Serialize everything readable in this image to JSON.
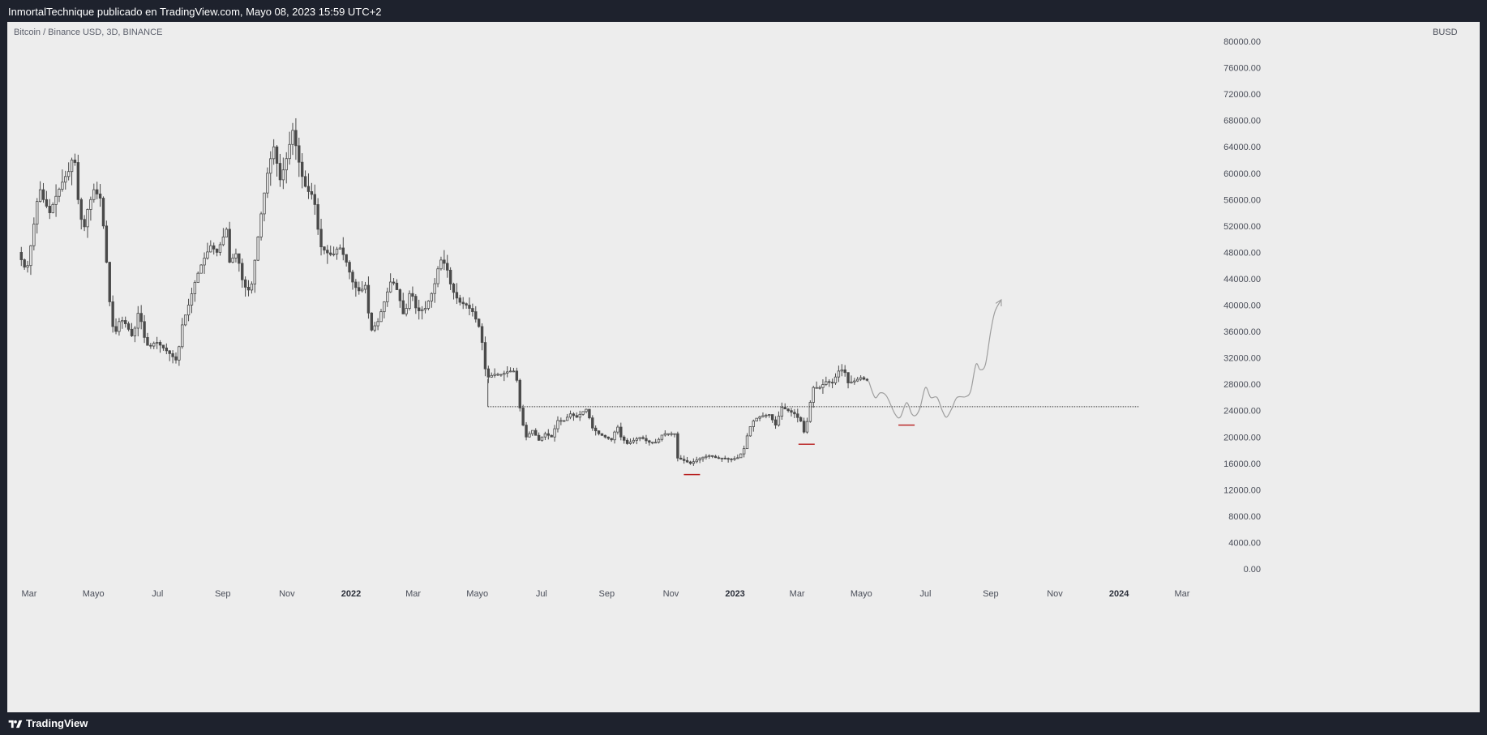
{
  "header": {
    "publisher_line": "InmortalTechnique publicado en TradingView.com, Mayo 08, 2023 15:59 UTC+2"
  },
  "symbol_label": "Bitcoin / Binance USD, 3D, BINANCE",
  "currency_label": "BUSD",
  "footer": {
    "brand": "TradingView"
  },
  "colors": {
    "background": "#ededed",
    "frame": "#1e222d",
    "candle": "#4a4a4a",
    "projection": "#9e9e9e",
    "support_line": "#3a3a3a",
    "low_marker": "#b71c1c"
  },
  "chart_data": {
    "type": "candlestick",
    "symbol": "Bitcoin / Binance USD",
    "interval": "3D",
    "exchange": "BINANCE",
    "ylim": [
      0,
      80000
    ],
    "y_ticks": [
      "80000.00",
      "76000.00",
      "72000.00",
      "68000.00",
      "64000.00",
      "60000.00",
      "56000.00",
      "52000.00",
      "48000.00",
      "44000.00",
      "40000.00",
      "36000.00",
      "32000.00",
      "28000.00",
      "24000.00",
      "20000.00",
      "16000.00",
      "12000.00",
      "8000.00",
      "4000.00",
      "0.00"
    ],
    "x_ticks": [
      {
        "label": "Mar",
        "date": "2021-03-01"
      },
      {
        "label": "Mayo",
        "date": "2021-05-01"
      },
      {
        "label": "Jul",
        "date": "2021-07-01"
      },
      {
        "label": "Sep",
        "date": "2021-09-01"
      },
      {
        "label": "Nov",
        "date": "2021-11-01"
      },
      {
        "label": "2022",
        "date": "2022-01-01",
        "bold": true
      },
      {
        "label": "Mar",
        "date": "2022-03-01"
      },
      {
        "label": "Mayo",
        "date": "2022-05-01"
      },
      {
        "label": "Jul",
        "date": "2022-07-01"
      },
      {
        "label": "Sep",
        "date": "2022-09-01"
      },
      {
        "label": "Nov",
        "date": "2022-11-01"
      },
      {
        "label": "2023",
        "date": "2023-01-01",
        "bold": true
      },
      {
        "label": "Mar",
        "date": "2023-03-01"
      },
      {
        "label": "Mayo",
        "date": "2023-05-01"
      },
      {
        "label": "Jul",
        "date": "2023-07-01"
      },
      {
        "label": "Sep",
        "date": "2023-09-01"
      },
      {
        "label": "Nov",
        "date": "2023-11-01"
      },
      {
        "label": "2024",
        "date": "2024-01-01",
        "bold": true
      },
      {
        "label": "Mar",
        "date": "2024-03-01"
      }
    ],
    "price_path": [
      [
        "2021-02-20",
        48000
      ],
      [
        "2021-02-28",
        45000
      ],
      [
        "2021-03-05",
        50000
      ],
      [
        "2021-03-12",
        58000
      ],
      [
        "2021-03-16",
        56000
      ],
      [
        "2021-03-22",
        54000
      ],
      [
        "2021-03-28",
        56500
      ],
      [
        "2021-04-04",
        59000
      ],
      [
        "2021-04-10",
        60500
      ],
      [
        "2021-04-14",
        63500
      ],
      [
        "2021-04-18",
        56000
      ],
      [
        "2021-04-23",
        51000
      ],
      [
        "2021-04-27",
        54500
      ],
      [
        "2021-05-03",
        57500
      ],
      [
        "2021-05-10",
        56000
      ],
      [
        "2021-05-13",
        50000
      ],
      [
        "2021-05-17",
        43000
      ],
      [
        "2021-05-19",
        38000
      ],
      [
        "2021-05-23",
        35500
      ],
      [
        "2021-05-28",
        38000
      ],
      [
        "2021-06-03",
        37000
      ],
      [
        "2021-06-09",
        35000
      ],
      [
        "2021-06-15",
        39500
      ],
      [
        "2021-06-19",
        35500
      ],
      [
        "2021-06-24",
        33500
      ],
      [
        "2021-07-01",
        34500
      ],
      [
        "2021-07-08",
        33500
      ],
      [
        "2021-07-15",
        32500
      ],
      [
        "2021-07-21",
        31500
      ],
      [
        "2021-07-26",
        37000
      ],
      [
        "2021-08-01",
        40000
      ],
      [
        "2021-08-08",
        44000
      ],
      [
        "2021-08-14",
        46500
      ],
      [
        "2021-08-22",
        49000
      ],
      [
        "2021-08-28",
        48000
      ],
      [
        "2021-09-06",
        51500
      ],
      [
        "2021-09-09",
        46500
      ],
      [
        "2021-09-16",
        48000
      ],
      [
        "2021-09-22",
        43000
      ],
      [
        "2021-09-29",
        42000
      ],
      [
        "2021-10-04",
        48000
      ],
      [
        "2021-10-10",
        55000
      ],
      [
        "2021-10-16",
        61000
      ],
      [
        "2021-10-21",
        64000
      ],
      [
        "2021-10-27",
        59000
      ],
      [
        "2021-11-01",
        61500
      ],
      [
        "2021-11-08",
        66500
      ],
      [
        "2021-11-10",
        65000
      ],
      [
        "2021-11-16",
        60000
      ],
      [
        "2021-11-21",
        57500
      ],
      [
        "2021-11-28",
        56500
      ],
      [
        "2021-12-04",
        49000
      ],
      [
        "2021-12-10",
        48000
      ],
      [
        "2021-12-16",
        47500
      ],
      [
        "2021-12-22",
        49000
      ],
      [
        "2021-12-28",
        47000
      ],
      [
        "2022-01-05",
        43000
      ],
      [
        "2022-01-11",
        42000
      ],
      [
        "2022-01-16",
        43000
      ],
      [
        "2022-01-21",
        36000
      ],
      [
        "2022-01-28",
        37500
      ],
      [
        "2022-02-06",
        42000
      ],
      [
        "2022-02-10",
        44000
      ],
      [
        "2022-02-16",
        42000
      ],
      [
        "2022-02-22",
        38000
      ],
      [
        "2022-02-28",
        42500
      ],
      [
        "2022-03-06",
        39000
      ],
      [
        "2022-03-14",
        39500
      ],
      [
        "2022-03-22",
        42500
      ],
      [
        "2022-03-28",
        47000
      ],
      [
        "2022-04-03",
        46000
      ],
      [
        "2022-04-08",
        42500
      ],
      [
        "2022-04-15",
        40500
      ],
      [
        "2022-04-22",
        40000
      ],
      [
        "2022-04-28",
        39000
      ],
      [
        "2022-05-06",
        36000
      ],
      [
        "2022-05-09",
        31000
      ],
      [
        "2022-05-12",
        29000
      ],
      [
        "2022-05-18",
        29500
      ],
      [
        "2022-05-25",
        29500
      ],
      [
        "2022-06-02",
        30000
      ],
      [
        "2022-06-08",
        30000
      ],
      [
        "2022-06-13",
        23000
      ],
      [
        "2022-06-18",
        20000
      ],
      [
        "2022-06-24",
        21000
      ],
      [
        "2022-06-30",
        19500
      ],
      [
        "2022-07-06",
        20500
      ],
      [
        "2022-07-12",
        20000
      ],
      [
        "2022-07-18",
        22500
      ],
      [
        "2022-07-24",
        22500
      ],
      [
        "2022-07-30",
        23500
      ],
      [
        "2022-08-05",
        23000
      ],
      [
        "2022-08-12",
        24000
      ],
      [
        "2022-08-15",
        24300
      ],
      [
        "2022-08-19",
        21500
      ],
      [
        "2022-08-26",
        20500
      ],
      [
        "2022-09-01",
        20000
      ],
      [
        "2022-09-08",
        19500
      ],
      [
        "2022-09-12",
        22000
      ],
      [
        "2022-09-16",
        20000
      ],
      [
        "2022-09-22",
        19000
      ],
      [
        "2022-09-28",
        19500
      ],
      [
        "2022-10-05",
        20000
      ],
      [
        "2022-10-12",
        19200
      ],
      [
        "2022-10-20",
        19200
      ],
      [
        "2022-10-26",
        20500
      ],
      [
        "2022-11-01",
        20500
      ],
      [
        "2022-11-07",
        20500
      ],
      [
        "2022-11-09",
        16800
      ],
      [
        "2022-11-14",
        16500
      ],
      [
        "2022-11-21",
        16000
      ],
      [
        "2022-11-27",
        16500
      ],
      [
        "2022-12-04",
        17000
      ],
      [
        "2022-12-10",
        17200
      ],
      [
        "2022-12-16",
        16800
      ],
      [
        "2022-12-22",
        16800
      ],
      [
        "2022-12-30",
        16600
      ],
      [
        "2023-01-06",
        16900
      ],
      [
        "2023-01-12",
        18500
      ],
      [
        "2023-01-15",
        21000
      ],
      [
        "2023-01-21",
        22700
      ],
      [
        "2023-01-28",
        23200
      ],
      [
        "2023-02-04",
        23400
      ],
      [
        "2023-02-10",
        21800
      ],
      [
        "2023-02-16",
        24500
      ],
      [
        "2023-02-22",
        24000
      ],
      [
        "2023-02-28",
        23500
      ],
      [
        "2023-03-06",
        22400
      ],
      [
        "2023-03-10",
        20200
      ],
      [
        "2023-03-14",
        24500
      ],
      [
        "2023-03-18",
        27500
      ],
      [
        "2023-03-24",
        27500
      ],
      [
        "2023-03-30",
        28400
      ],
      [
        "2023-04-05",
        28200
      ],
      [
        "2023-04-11",
        30000
      ],
      [
        "2023-04-16",
        30300
      ],
      [
        "2023-04-20",
        28200
      ],
      [
        "2023-04-26",
        28500
      ],
      [
        "2023-05-02",
        29000
      ],
      [
        "2023-05-07",
        28600
      ]
    ],
    "support_level": {
      "value": 24600,
      "from": "2022-05-11",
      "to": "2024-01-20",
      "style": "dotted"
    },
    "low_markers": [
      {
        "date": "2022-11-21",
        "value": 14300
      },
      {
        "date": "2023-03-10",
        "value": 18900
      },
      {
        "date": "2023-06-13",
        "value": 21800
      }
    ],
    "projection": [
      [
        "2023-05-08",
        28500
      ],
      [
        "2023-05-14",
        26000
      ],
      [
        "2023-05-19",
        26700
      ],
      [
        "2023-05-25",
        26200
      ],
      [
        "2023-06-02",
        23500
      ],
      [
        "2023-06-07",
        23000
      ],
      [
        "2023-06-13",
        25200
      ],
      [
        "2023-06-18",
        23500
      ],
      [
        "2023-06-22",
        23300
      ],
      [
        "2023-06-26",
        24500
      ],
      [
        "2023-07-01",
        27500
      ],
      [
        "2023-07-06",
        26000
      ],
      [
        "2023-07-12",
        26000
      ],
      [
        "2023-07-17",
        24000
      ],
      [
        "2023-07-21",
        23000
      ],
      [
        "2023-07-26",
        24300
      ],
      [
        "2023-07-31",
        26000
      ],
      [
        "2023-08-08",
        26100
      ],
      [
        "2023-08-13",
        27000
      ],
      [
        "2023-08-18",
        31000
      ],
      [
        "2023-08-22",
        30200
      ],
      [
        "2023-08-27",
        31000
      ],
      [
        "2023-09-01",
        36000
      ],
      [
        "2023-09-05",
        39000
      ],
      [
        "2023-09-11",
        40800
      ]
    ]
  }
}
